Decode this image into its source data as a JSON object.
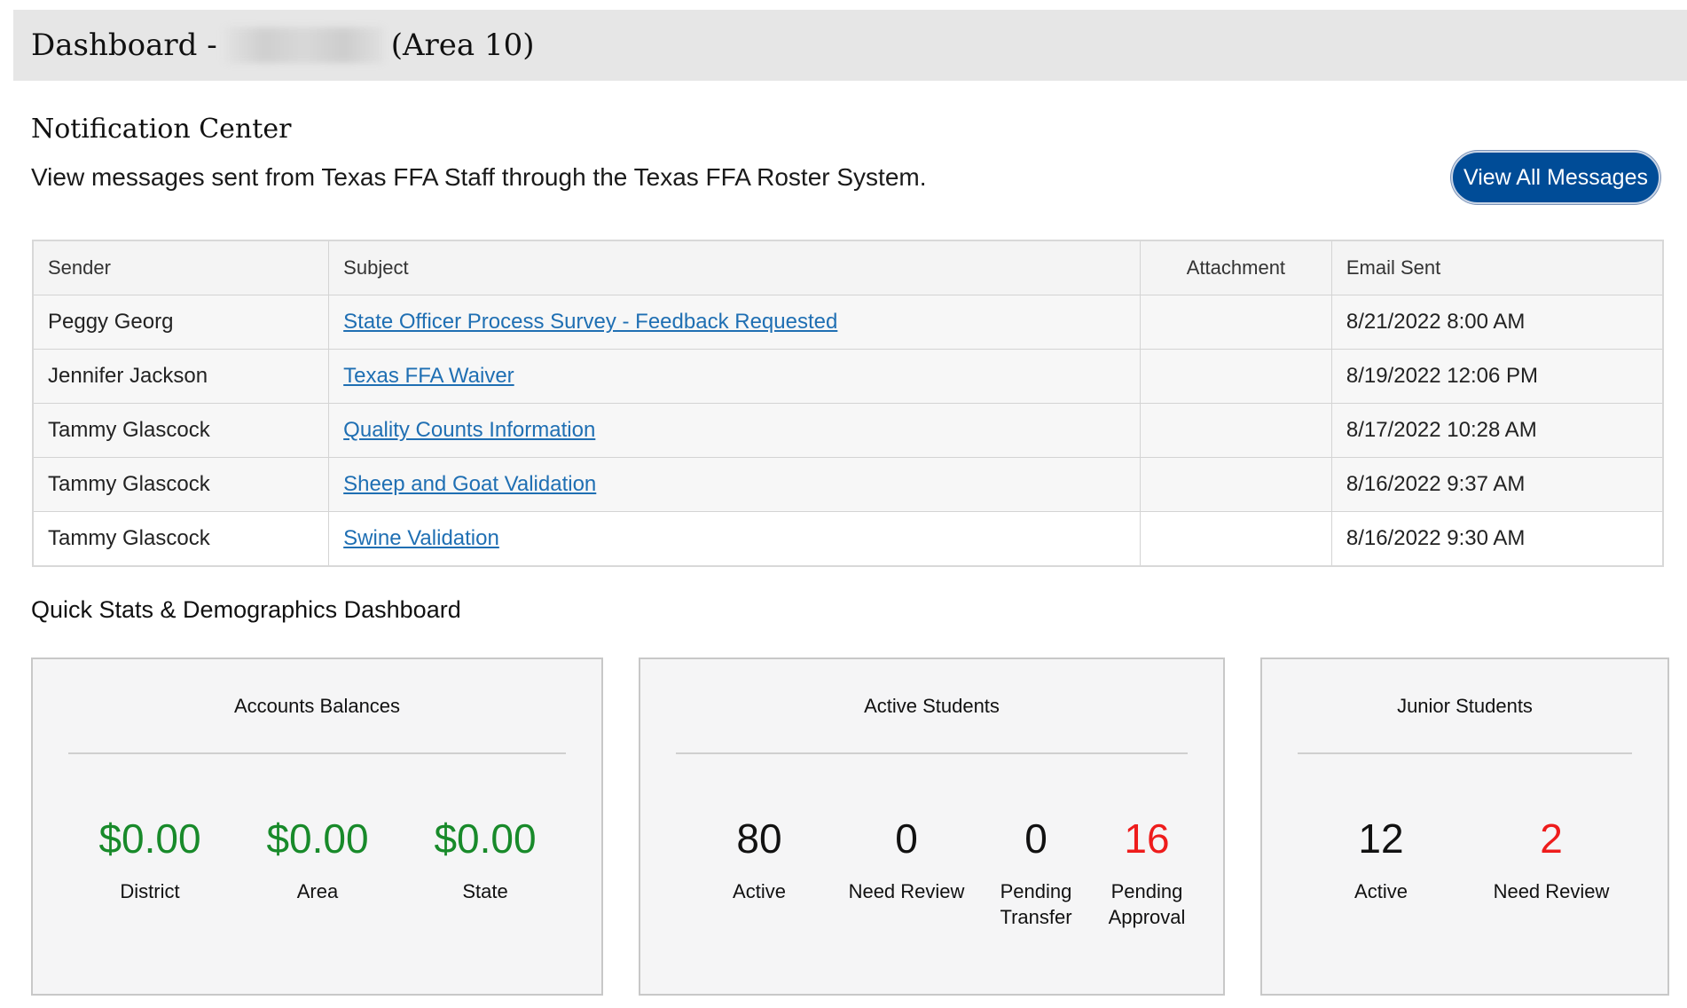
{
  "header": {
    "title_prefix": "Dashboard -",
    "title_suffix": "(Area 10)"
  },
  "notification_center": {
    "title": "Notification Center",
    "description": "View messages sent from Texas FFA Staff through the Texas FFA Roster System.",
    "view_all_label": "View All Messages",
    "columns": [
      "Sender",
      "Subject",
      "Attachment",
      "Email Sent"
    ],
    "rows": [
      {
        "sender": "Peggy Georg",
        "subject": "State Officer Process Survey - Feedback Requested",
        "attachment": "",
        "sent": "8/21/2022 8:00 AM"
      },
      {
        "sender": "Jennifer Jackson",
        "subject": "Texas FFA Waiver",
        "attachment": "",
        "sent": "8/19/2022 12:06 PM"
      },
      {
        "sender": "Tammy Glascock",
        "subject": "Quality Counts Information",
        "attachment": "",
        "sent": "8/17/2022 10:28 AM"
      },
      {
        "sender": "Tammy Glascock",
        "subject": "Sheep and Goat Validation",
        "attachment": "",
        "sent": "8/16/2022 9:37 AM"
      },
      {
        "sender": "Tammy Glascock",
        "subject": "Swine Validation",
        "attachment": "",
        "sent": "8/16/2022 9:30 AM"
      }
    ]
  },
  "quick_stats": {
    "title": "Quick Stats & Demographics Dashboard",
    "accounts": {
      "title": "Accounts Balances",
      "stats": [
        {
          "value": "$0.00",
          "label": "District"
        },
        {
          "value": "$0.00",
          "label": "Area"
        },
        {
          "value": "$0.00",
          "label": "State"
        }
      ]
    },
    "active_students": {
      "title": "Active Students",
      "stats": [
        {
          "value": "80",
          "label": "Active"
        },
        {
          "value": "0",
          "label": "Need Review"
        },
        {
          "value": "0",
          "label": "Pending Transfer"
        },
        {
          "value": "16",
          "label": "Pending Approval"
        }
      ]
    },
    "junior_students": {
      "title": "Junior Students",
      "stats": [
        {
          "value": "12",
          "label": "Active"
        },
        {
          "value": "2",
          "label": "Need Review"
        }
      ]
    }
  },
  "colors": {
    "primary_button": "#004c97",
    "link": "#1f6fb3",
    "money_green": "#188a2a",
    "alert_red": "#ee1c1c"
  }
}
